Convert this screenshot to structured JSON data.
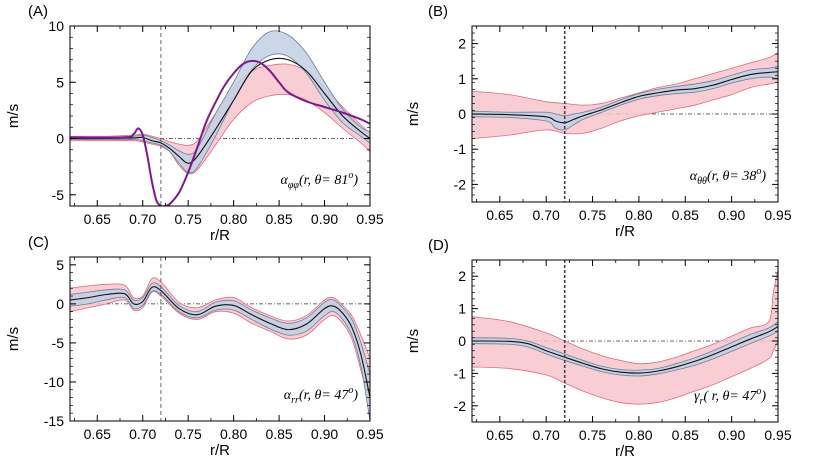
{
  "chart_data": [
    {
      "type": "line",
      "panel_label": "(A)",
      "annotation": "α φφ(r, θ= 81°)",
      "annotation_parts": {
        "symbol": "α",
        "subscript": "φφ",
        "text": "(r, θ= 81",
        "sup": "o",
        "close": ")"
      },
      "xlabel": "r/R",
      "ylabel": "m/s",
      "xlim": [
        0.62,
        0.95
      ],
      "ylim": [
        -6,
        10
      ],
      "xticks": [
        "0.65",
        "0.70",
        "0.75",
        "0.80",
        "0.85",
        "0.90",
        "0.95"
      ],
      "yticks": [
        "-5",
        "0",
        "5",
        "10"
      ],
      "vline": 0.72,
      "hline": 0,
      "series": [
        {
          "name": "model band (red)",
          "kind": "band",
          "color": "#f7c6cc",
          "edge": "#e06b7b",
          "x": [
            0.62,
            0.66,
            0.69,
            0.7,
            0.71,
            0.72,
            0.73,
            0.74,
            0.75,
            0.76,
            0.78,
            0.8,
            0.82,
            0.84,
            0.86,
            0.88,
            0.9,
            0.92,
            0.94,
            0.95
          ],
          "upper": [
            0.2,
            0.2,
            0.3,
            0.4,
            0.2,
            0.0,
            -0.3,
            -0.5,
            -0.6,
            -0.2,
            2.2,
            4.5,
            6.0,
            6.5,
            6.6,
            6.0,
            4.5,
            2.8,
            1.2,
            0.5
          ],
          "lower": [
            -0.2,
            -0.2,
            -0.2,
            -0.3,
            -0.5,
            -0.7,
            -1.2,
            -2.4,
            -3.1,
            -2.8,
            -0.6,
            1.7,
            3.2,
            3.8,
            3.9,
            3.4,
            2.3,
            0.9,
            -0.4,
            -1.2
          ]
        },
        {
          "name": "model band (blue)",
          "kind": "band",
          "color": "#c2d0e3",
          "edge": "#6b7d9a",
          "x": [
            0.62,
            0.66,
            0.69,
            0.7,
            0.71,
            0.72,
            0.73,
            0.74,
            0.75,
            0.76,
            0.78,
            0.8,
            0.82,
            0.84,
            0.86,
            0.88,
            0.9,
            0.92,
            0.94,
            0.95
          ],
          "upper": [
            0.1,
            0.1,
            0.2,
            0.3,
            0.1,
            -0.2,
            -0.6,
            -1.1,
            -1.4,
            -0.9,
            2.2,
            5.0,
            8.0,
            9.5,
            9.2,
            7.6,
            5.0,
            2.6,
            1.0,
            0.6
          ],
          "lower": [
            -0.1,
            -0.1,
            -0.1,
            -0.2,
            -0.4,
            -0.6,
            -1.2,
            -2.2,
            -3.0,
            -2.6,
            0.2,
            3.4,
            6.1,
            7.4,
            7.3,
            5.8,
            3.4,
            1.4,
            0.2,
            -0.4
          ]
        },
        {
          "name": "mean",
          "kind": "line",
          "color": "#111111",
          "x": [
            0.62,
            0.66,
            0.69,
            0.7,
            0.71,
            0.72,
            0.73,
            0.74,
            0.75,
            0.76,
            0.78,
            0.8,
            0.82,
            0.84,
            0.86,
            0.88,
            0.9,
            0.92,
            0.94,
            0.95
          ],
          "y": [
            0.0,
            0.0,
            0.05,
            0.1,
            -0.2,
            -0.4,
            -0.9,
            -1.6,
            -2.2,
            -1.6,
            0.8,
            3.4,
            6.0,
            7.0,
            7.0,
            6.0,
            4.0,
            2.0,
            0.6,
            0.0
          ]
        },
        {
          "name": "reference",
          "kind": "line",
          "color": "#7b1a8c",
          "width": 2,
          "x": [
            0.62,
            0.68,
            0.69,
            0.695,
            0.7,
            0.705,
            0.71,
            0.715,
            0.72,
            0.725,
            0.73,
            0.74,
            0.75,
            0.76,
            0.77,
            0.78,
            0.79,
            0.8,
            0.81,
            0.82,
            0.83,
            0.84,
            0.85,
            0.86,
            0.88,
            0.9,
            0.92,
            0.94,
            0.95
          ],
          "y": [
            0.1,
            0.1,
            0.4,
            0.9,
            0.3,
            -1.5,
            -3.8,
            -5.5,
            -6.0,
            -6.0,
            -5.8,
            -4.8,
            -3.0,
            -0.8,
            1.5,
            3.2,
            4.7,
            5.8,
            6.6,
            6.9,
            6.7,
            6.0,
            5.0,
            4.1,
            3.3,
            2.8,
            2.3,
            1.7,
            1.3
          ]
        }
      ]
    },
    {
      "type": "line",
      "panel_label": "(B)",
      "annotation": "α θθ(r, θ= 38°)",
      "annotation_parts": {
        "symbol": "α",
        "subscript": "θθ",
        "text": "(r, θ= 38",
        "sup": "o",
        "close": ")"
      },
      "xlabel": "r/R",
      "ylabel": "m/s",
      "xlim": [
        0.62,
        0.95
      ],
      "ylim": [
        -2.5,
        2.5
      ],
      "xticks": [
        "0.65",
        "0.70",
        "0.75",
        "0.80",
        "0.85",
        "0.90",
        "0.95"
      ],
      "yticks": [
        "-2",
        "-1",
        "0",
        "1",
        "2"
      ],
      "vline": 0.72,
      "hline": 0,
      "series": [
        {
          "name": "model band (red)",
          "kind": "band",
          "color": "#f7c6cc",
          "edge": "#e06b7b",
          "x": [
            0.62,
            0.66,
            0.7,
            0.72,
            0.74,
            0.76,
            0.78,
            0.8,
            0.82,
            0.84,
            0.86,
            0.88,
            0.9,
            0.92,
            0.94,
            0.95
          ],
          "upper": [
            0.65,
            0.55,
            0.35,
            0.3,
            0.25,
            0.3,
            0.45,
            0.6,
            0.75,
            0.85,
            1.0,
            1.15,
            1.3,
            1.45,
            1.6,
            1.75
          ],
          "lower": [
            -0.7,
            -0.6,
            -0.45,
            -0.55,
            -0.55,
            -0.4,
            -0.2,
            -0.05,
            0.05,
            0.15,
            0.25,
            0.4,
            0.55,
            0.75,
            0.85,
            0.9
          ]
        },
        {
          "name": "model band (blue)",
          "kind": "band",
          "color": "#c2d0e3",
          "edge": "#6b7d9a",
          "x": [
            0.62,
            0.66,
            0.7,
            0.71,
            0.72,
            0.73,
            0.74,
            0.76,
            0.78,
            0.8,
            0.82,
            0.84,
            0.86,
            0.88,
            0.9,
            0.92,
            0.94,
            0.95
          ],
          "upper": [
            0.08,
            0.05,
            0.05,
            0.0,
            -0.05,
            0.0,
            0.05,
            0.2,
            0.4,
            0.58,
            0.7,
            0.78,
            0.85,
            0.95,
            1.1,
            1.25,
            1.3,
            1.35
          ],
          "lower": [
            -0.08,
            -0.1,
            -0.2,
            -0.4,
            -0.45,
            -0.3,
            -0.15,
            0.05,
            0.25,
            0.42,
            0.52,
            0.58,
            0.62,
            0.72,
            0.88,
            1.0,
            1.05,
            1.0
          ]
        },
        {
          "name": "mean",
          "kind": "line",
          "color": "#111111",
          "x": [
            0.62,
            0.66,
            0.7,
            0.71,
            0.72,
            0.73,
            0.74,
            0.76,
            0.78,
            0.8,
            0.82,
            0.84,
            0.86,
            0.88,
            0.9,
            0.92,
            0.94,
            0.95
          ],
          "y": [
            0.0,
            -0.02,
            -0.08,
            -0.2,
            -0.25,
            -0.15,
            -0.05,
            0.12,
            0.32,
            0.5,
            0.6,
            0.68,
            0.72,
            0.82,
            0.98,
            1.12,
            1.18,
            1.2
          ]
        }
      ]
    },
    {
      "type": "line",
      "panel_label": "(C)",
      "annotation": "α rr(r, θ= 47°)",
      "annotation_parts": {
        "symbol": "α",
        "subscript": "rr",
        "text": "(r, θ= 47",
        "sup": "o",
        "close": ")"
      },
      "xlabel": "r/R",
      "ylabel": "m/s",
      "xlim": [
        0.62,
        0.95
      ],
      "ylim": [
        -15,
        6
      ],
      "xticks": [
        "0.65",
        "0.70",
        "0.75",
        "0.80",
        "0.85",
        "0.90",
        "0.95"
      ],
      "yticks": [
        "-15",
        "-10",
        "-5",
        "0",
        "5"
      ],
      "vline": 0.72,
      "hline": 0,
      "series": [
        {
          "name": "model band (red)",
          "kind": "band",
          "color": "#f7c6cc",
          "edge": "#e06b7b",
          "x": [
            0.62,
            0.64,
            0.66,
            0.68,
            0.69,
            0.7,
            0.71,
            0.72,
            0.74,
            0.76,
            0.78,
            0.8,
            0.82,
            0.84,
            0.86,
            0.88,
            0.9,
            0.91,
            0.92,
            0.93,
            0.94,
            0.95
          ],
          "upper": [
            2.0,
            2.3,
            2.5,
            2.4,
            0.8,
            1.0,
            3.2,
            2.8,
            0.2,
            -0.5,
            0.5,
            0.8,
            -0.5,
            -1.5,
            -2.2,
            -1.5,
            0.5,
            0.8,
            -0.2,
            -1.5,
            -4.0,
            -7.0
          ],
          "lower": [
            -1.0,
            -0.5,
            0.0,
            0.5,
            -0.8,
            -0.5,
            1.5,
            1.0,
            -1.2,
            -2.0,
            -1.0,
            -1.2,
            -2.5,
            -3.5,
            -4.5,
            -4.0,
            -2.0,
            -1.5,
            -2.5,
            -4.5,
            -8.5,
            -13.0
          ]
        },
        {
          "name": "model band (blue)",
          "kind": "band",
          "color": "#c2d0e3",
          "edge": "#6b7d9a",
          "x": [
            0.62,
            0.64,
            0.66,
            0.68,
            0.69,
            0.7,
            0.71,
            0.72,
            0.74,
            0.76,
            0.78,
            0.8,
            0.82,
            0.84,
            0.86,
            0.88,
            0.9,
            0.91,
            0.92,
            0.93,
            0.94,
            0.95
          ],
          "upper": [
            1.2,
            1.5,
            1.8,
            1.8,
            0.5,
            0.8,
            2.6,
            2.2,
            -0.2,
            -1.0,
            0.2,
            0.4,
            -0.8,
            -1.8,
            -2.5,
            -1.8,
            0.2,
            0.5,
            -0.5,
            -2.0,
            -5.0,
            -9.0
          ],
          "lower": [
            -0.3,
            0.0,
            0.5,
            0.8,
            -0.6,
            -0.2,
            1.6,
            1.2,
            -1.0,
            -1.8,
            -0.8,
            -0.8,
            -2.0,
            -3.2,
            -4.0,
            -3.5,
            -1.5,
            -1.0,
            -2.0,
            -4.0,
            -8.0,
            -15.0
          ]
        },
        {
          "name": "mean",
          "kind": "line",
          "color": "#111111",
          "x": [
            0.62,
            0.64,
            0.66,
            0.68,
            0.69,
            0.7,
            0.71,
            0.72,
            0.74,
            0.76,
            0.78,
            0.8,
            0.82,
            0.84,
            0.86,
            0.88,
            0.9,
            0.91,
            0.92,
            0.93,
            0.94,
            0.95
          ],
          "y": [
            0.5,
            0.8,
            1.2,
            1.3,
            0.0,
            0.3,
            2.1,
            1.7,
            -0.6,
            -1.4,
            -0.3,
            -0.2,
            -1.4,
            -2.5,
            -3.3,
            -2.6,
            -0.6,
            -0.3,
            -1.2,
            -3.0,
            -6.5,
            -12.0
          ]
        }
      ]
    },
    {
      "type": "line",
      "panel_label": "(D)",
      "annotation": "γ r(r, θ= 47°)",
      "annotation_parts": {
        "symbol": "γ",
        "subscript": "r",
        "text": "( r, θ= 47",
        "sup": "o",
        "close": ")"
      },
      "xlabel": "r/R",
      "ylabel": "m/s",
      "xlim": [
        0.62,
        0.95
      ],
      "ylim": [
        -2.5,
        2.5
      ],
      "xticks": [
        "0.65",
        "0.70",
        "0.75",
        "0.80",
        "0.85",
        "0.90",
        "0.95"
      ],
      "yticks": [
        "-2",
        "-1",
        "0",
        "1",
        "2"
      ],
      "vline": 0.72,
      "hline": 0,
      "series": [
        {
          "name": "model band (red)",
          "kind": "band",
          "color": "#f7c6cc",
          "edge": "#e06b7b",
          "x": [
            0.62,
            0.66,
            0.7,
            0.72,
            0.74,
            0.76,
            0.78,
            0.8,
            0.82,
            0.84,
            0.86,
            0.88,
            0.9,
            0.92,
            0.94,
            0.945,
            0.95
          ],
          "upper": [
            0.75,
            0.6,
            0.25,
            0.0,
            -0.25,
            -0.45,
            -0.6,
            -0.7,
            -0.65,
            -0.5,
            -0.3,
            -0.1,
            0.15,
            0.4,
            0.6,
            1.5,
            2.2
          ],
          "lower": [
            -0.8,
            -0.85,
            -1.05,
            -1.3,
            -1.55,
            -1.75,
            -1.9,
            -1.95,
            -1.9,
            -1.75,
            -1.55,
            -1.35,
            -1.1,
            -0.85,
            -0.55,
            -0.3,
            0.0
          ]
        },
        {
          "name": "model band (blue)",
          "kind": "band",
          "color": "#c2d0e3",
          "edge": "#6b7d9a",
          "x": [
            0.62,
            0.66,
            0.68,
            0.7,
            0.72,
            0.74,
            0.76,
            0.78,
            0.8,
            0.82,
            0.84,
            0.86,
            0.88,
            0.9,
            0.92,
            0.94,
            0.95
          ],
          "upper": [
            0.1,
            0.08,
            0.0,
            -0.2,
            -0.4,
            -0.6,
            -0.78,
            -0.88,
            -0.9,
            -0.85,
            -0.7,
            -0.52,
            -0.3,
            -0.05,
            0.2,
            0.4,
            0.6
          ],
          "lower": [
            -0.08,
            -0.1,
            -0.18,
            -0.4,
            -0.6,
            -0.78,
            -0.95,
            -1.05,
            -1.08,
            -1.02,
            -0.9,
            -0.75,
            -0.55,
            -0.32,
            -0.08,
            0.15,
            0.3
          ]
        },
        {
          "name": "mean",
          "kind": "line",
          "color": "#111111",
          "x": [
            0.62,
            0.66,
            0.68,
            0.7,
            0.72,
            0.74,
            0.76,
            0.78,
            0.8,
            0.82,
            0.84,
            0.86,
            0.88,
            0.9,
            0.92,
            0.94,
            0.95
          ],
          "y": [
            0.0,
            -0.01,
            -0.08,
            -0.3,
            -0.5,
            -0.69,
            -0.86,
            -0.96,
            -0.99,
            -0.93,
            -0.8,
            -0.63,
            -0.42,
            -0.18,
            0.06,
            0.28,
            0.45
          ]
        }
      ]
    }
  ]
}
